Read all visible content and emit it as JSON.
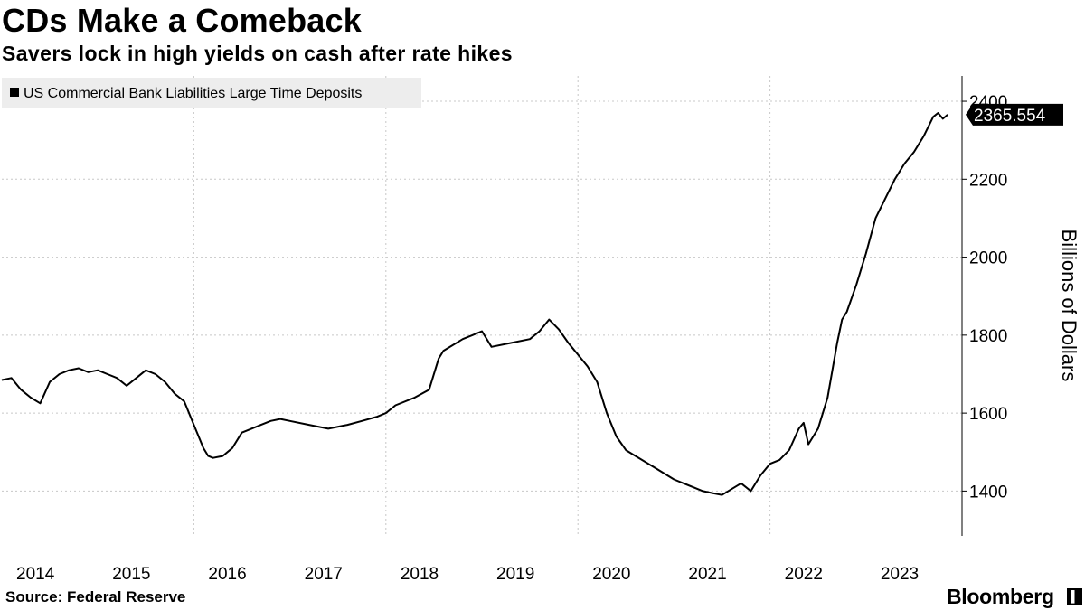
{
  "header": {
    "title": "CDs Make a Comeback",
    "subtitle": "Savers lock in high yields on cash after rate hikes"
  },
  "footer": {
    "source": "Source: Federal Reserve",
    "brand": "Bloomberg",
    "brand_mark": "▌"
  },
  "colors": {
    "line": "#000000",
    "grid": "#c8c8c8",
    "legend_bg": "#ededed",
    "label_bg": "#000000"
  },
  "chart_data": {
    "type": "line",
    "title": "CDs Make a Comeback",
    "subtitle": "Savers lock in high yields on cash after rate hikes",
    "ylabel": "Billions of Dollars",
    "xlabel": "",
    "legend": {
      "position": "top-left",
      "entries": [
        "US Commercial Bank Liabilities Large Time Deposits"
      ]
    },
    "ylim": [
      1285,
      2465
    ],
    "xlim": [
      2014.0,
      2024.0
    ],
    "yticks": [
      1400,
      1600,
      1800,
      2000,
      2200,
      2400
    ],
    "xtick_labels": [
      "2014",
      "2015",
      "2016",
      "2017",
      "2018",
      "2019",
      "2020",
      "2021",
      "2022",
      "2023"
    ],
    "last_value_label": "2365.554",
    "grid": true,
    "series": [
      {
        "name": "US Commercial Bank Liabilities Large Time Deposits",
        "x": [
          2014.0,
          2014.1,
          2014.2,
          2014.3,
          2014.4,
          2014.5,
          2014.6,
          2014.7,
          2014.8,
          2014.9,
          2015.0,
          2015.1,
          2015.2,
          2015.3,
          2015.4,
          2015.5,
          2015.6,
          2015.7,
          2015.8,
          2015.9,
          2016.0,
          2016.1,
          2016.15,
          2016.2,
          2016.3,
          2016.4,
          2016.5,
          2016.6,
          2016.7,
          2016.8,
          2016.9,
          2017.0,
          2017.2,
          2017.4,
          2017.6,
          2017.75,
          2017.9,
          2018.0,
          2018.1,
          2018.3,
          2018.45,
          2018.55,
          2018.6,
          2018.8,
          2018.9,
          2019.0,
          2019.1,
          2019.3,
          2019.5,
          2019.6,
          2019.7,
          2019.8,
          2019.9,
          2020.0,
          2020.1,
          2020.2,
          2020.3,
          2020.4,
          2020.5,
          2020.6,
          2020.8,
          2021.0,
          2021.1,
          2021.2,
          2021.3,
          2021.4,
          2021.5,
          2021.6,
          2021.7,
          2021.8,
          2021.9,
          2022.0,
          2022.1,
          2022.2,
          2022.3,
          2022.35,
          2022.4,
          2022.5,
          2022.6,
          2022.7,
          2022.75,
          2022.8,
          2022.9,
          2023.0,
          2023.1,
          2023.2,
          2023.3,
          2023.4,
          2023.5,
          2023.6,
          2023.7,
          2023.75,
          2023.8,
          2023.85
        ],
        "values": [
          1685,
          1690,
          1660,
          1640,
          1625,
          1680,
          1700,
          1710,
          1715,
          1705,
          1710,
          1700,
          1690,
          1670,
          1690,
          1710,
          1700,
          1680,
          1650,
          1630,
          1570,
          1510,
          1490,
          1485,
          1490,
          1510,
          1550,
          1560,
          1570,
          1580,
          1585,
          1580,
          1570,
          1560,
          1570,
          1580,
          1590,
          1600,
          1620,
          1640,
          1660,
          1740,
          1760,
          1790,
          1800,
          1810,
          1770,
          1780,
          1790,
          1810,
          1840,
          1815,
          1780,
          1750,
          1720,
          1680,
          1600,
          1540,
          1505,
          1490,
          1460,
          1430,
          1420,
          1410,
          1400,
          1395,
          1390,
          1405,
          1420,
          1400,
          1440,
          1470,
          1480,
          1505,
          1560,
          1575,
          1520,
          1560,
          1640,
          1780,
          1840,
          1860,
          1930,
          2010,
          2100,
          2150,
          2200,
          2240,
          2270,
          2310,
          2360,
          2370,
          2355,
          2365.554
        ]
      }
    ]
  }
}
